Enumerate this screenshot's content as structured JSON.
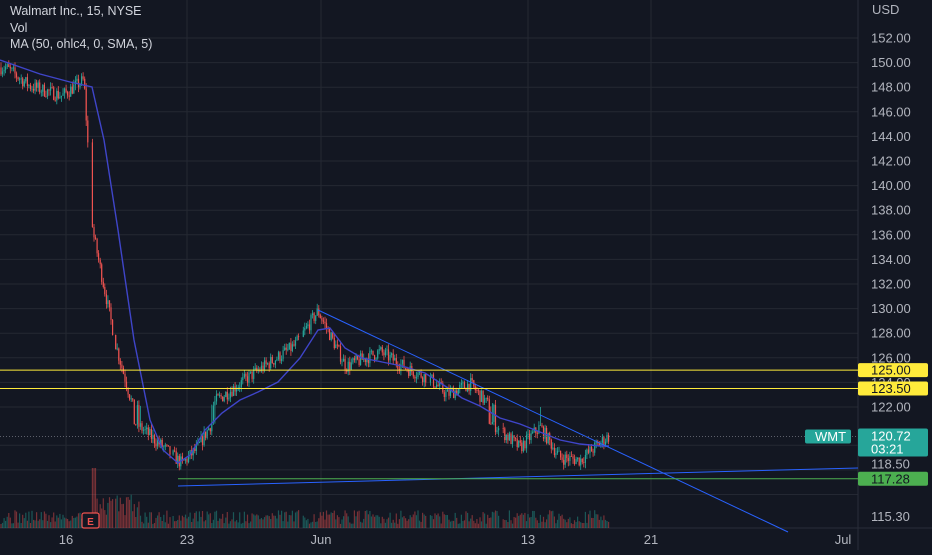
{
  "header": {
    "symbol_line": "Walmart Inc., 15, NYSE",
    "volume_label": "Vol",
    "ma_label": "MA (50, ohlc4, 0, SMA, 5)"
  },
  "price_axis": {
    "currency": "USD",
    "ticks": [
      "152.00",
      "150.00",
      "148.00",
      "146.00",
      "144.00",
      "142.00",
      "140.00",
      "138.00",
      "136.00",
      "134.00",
      "132.00",
      "130.00",
      "128.00",
      "126.00",
      "124.00",
      "122.00",
      "118.50",
      "115.30"
    ]
  },
  "time_axis": {
    "ticks": [
      "16",
      "23",
      "Jun",
      "13",
      "21",
      "Jul"
    ]
  },
  "badges": {
    "level_125": "125.00",
    "level_1235": "123.50",
    "level_11728": "117.28",
    "symbol": "WMT",
    "last_price": "120.72",
    "countdown": "03:21"
  },
  "earnings_marker": "E",
  "colors": {
    "background": "#131722",
    "grid": "#242833",
    "candle_up": "#26a69a",
    "candle_down": "#ef5350",
    "ma_line": "#3f45c9",
    "trendline": "#2962ff",
    "horizontal_yellow": "#ffeb3b",
    "horizontal_green": "#4caf50",
    "wmt_badge": "#26a69a"
  },
  "chart_data": {
    "type": "candlestick",
    "title": "Walmart Inc., 15, NYSE",
    "ylabel": "USD",
    "ylim": [
      114.2,
      153.5
    ],
    "x_ticks": [
      "16",
      "23",
      "Jun",
      "13",
      "21",
      "Jul"
    ],
    "price_path": [
      {
        "date": "May 12",
        "price": 149.6
      },
      {
        "date": "May 13",
        "price": 148.1
      },
      {
        "date": "May 16",
        "price": 147.3
      },
      {
        "date": "May 17",
        "price": 148.6
      },
      {
        "date": "May 18",
        "price": 136.2
      },
      {
        "date": "May 18",
        "price": 133.0
      },
      {
        "date": "May 19",
        "price": 127.0
      },
      {
        "date": "May 20",
        "price": 122.0
      },
      {
        "date": "May 23",
        "price": 118.5
      },
      {
        "date": "May 24",
        "price": 119.8
      },
      {
        "date": "May 25",
        "price": 122.5
      },
      {
        "date": "May 27",
        "price": 124.5
      },
      {
        "date": "May 31",
        "price": 127.0
      },
      {
        "date": "Jun 1",
        "price": 129.8
      },
      {
        "date": "Jun 2",
        "price": 125.3
      },
      {
        "date": "Jun 3",
        "price": 126.5
      },
      {
        "date": "Jun 6",
        "price": 125.0
      },
      {
        "date": "Jun 7",
        "price": 124.3
      },
      {
        "date": "Jun 8",
        "price": 123.0
      },
      {
        "date": "Jun 9",
        "price": 123.9
      },
      {
        "date": "Jun 10",
        "price": 122.0
      },
      {
        "date": "Jun 13",
        "price": 119.8
      },
      {
        "date": "Jun 14",
        "price": 121.5
      },
      {
        "date": "Jun 15",
        "price": 119.0
      },
      {
        "date": "Jun 16",
        "price": 118.8
      },
      {
        "date": "Jun 17",
        "price": 120.72
      }
    ],
    "last_price": 120.72,
    "horizontal_levels": [
      125.0,
      123.5,
      117.28
    ],
    "indicators": [
      "Vol",
      "MA (50, ohlc4, 0, SMA, 5)"
    ],
    "grid": true,
    "legend": "top-left"
  }
}
